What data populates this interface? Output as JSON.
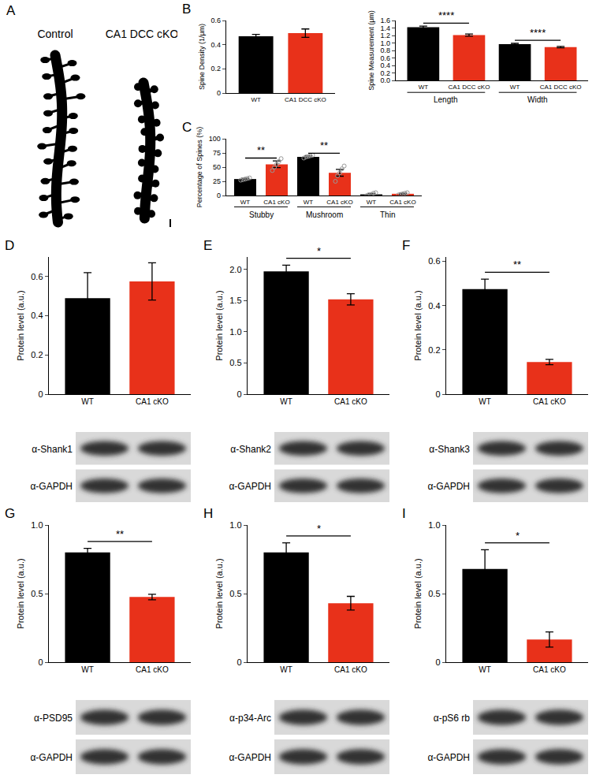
{
  "panel_a": {
    "panel": "A",
    "labels": [
      "Control",
      "CA1 DCC cKO"
    ]
  },
  "chart_data": [
    {
      "type": "bar",
      "panel": "B",
      "y_label": "Spine Density (1/μm)",
      "categories": [
        "WT",
        "CA1 DCC cKO"
      ],
      "values": [
        0.47,
        0.495
      ],
      "errors": [
        0.015,
        0.035
      ],
      "colors": [
        "#000000",
        "#e8311a"
      ],
      "ylim": [
        0,
        0.6
      ],
      "yticks": [
        0,
        0.2,
        0.4,
        0.6
      ],
      "grid": false
    },
    {
      "type": "bar",
      "panel": "B",
      "y_label": "Spine Measurement (μm)",
      "categories": [
        "WT",
        "CA1 DCC cKO",
        "WT",
        "CA1 DCC cKO"
      ],
      "groups": [
        "Length",
        "Width"
      ],
      "values": [
        1.42,
        1.21,
        0.97,
        0.89
      ],
      "errors": [
        0.03,
        0.03,
        0.02,
        0.02
      ],
      "colors": [
        "#000000",
        "#e8311a",
        "#000000",
        "#e8311a"
      ],
      "ylim": [
        0,
        1.6
      ],
      "yticks": [
        {
          "value": 0,
          "label": "0.0"
        },
        0.2,
        0.4,
        0.6,
        0.8,
        {
          "value": 1,
          "label": "1.0"
        },
        1.2,
        1.4,
        1.6
      ],
      "significance": [
        {
          "pair": [
            0,
            1
          ],
          "label": "****"
        },
        {
          "pair": [
            2,
            3
          ],
          "label": "****"
        }
      ],
      "grid": false
    },
    {
      "type": "bar",
      "panel": "C",
      "y_label": "Percentage of Spines (%)",
      "categories": [
        "WT",
        "CA1 cKO",
        "WT",
        "CA1 cKO",
        "WT",
        "CA1 cKO"
      ],
      "groups": [
        "Stubby",
        "Mushroom",
        "Thin"
      ],
      "values": [
        29,
        55,
        68,
        40,
        2,
        3
      ],
      "errors": [
        1.5,
        6,
        1.5,
        6,
        1.5,
        1
      ],
      "points": [
        [
          27,
          28,
          29,
          30,
          31
        ],
        [
          44,
          50,
          55,
          60,
          65
        ],
        [
          66,
          68,
          69,
          70,
          71
        ],
        [
          25,
          35,
          40,
          47,
          52
        ],
        [
          0,
          1,
          2,
          4,
          5
        ],
        [
          1,
          2,
          3,
          4,
          5
        ]
      ],
      "colors": [
        "#000000",
        "#e8311a",
        "#000000",
        "#e8311a",
        "#000000",
        "#e8311a"
      ],
      "ylim": [
        0,
        100
      ],
      "yticks": [
        0,
        25,
        50,
        75,
        100
      ],
      "significance": [
        {
          "pair": [
            0,
            1
          ],
          "label": "**"
        },
        {
          "pair": [
            2,
            3
          ],
          "label": "**"
        }
      ],
      "grid": false
    },
    {
      "type": "bar",
      "panel": "D",
      "y_label": "Protein level (a.u.)",
      "categories": [
        "WT",
        "CA1 cKO"
      ],
      "values": [
        0.49,
        0.575
      ],
      "errors": [
        0.13,
        0.095
      ],
      "colors": [
        "#000000",
        "#e8311a"
      ],
      "ylim": [
        0,
        0.7
      ],
      "yticks": [
        0,
        0.2,
        0.4,
        0.6
      ],
      "blots": [
        "α-Shank1",
        "α-GAPDH"
      ],
      "grid": false
    },
    {
      "type": "bar",
      "panel": "E",
      "y_label": "Protein level (a.u.)",
      "categories": [
        "WT",
        "CA1 cKO"
      ],
      "values": [
        1.97,
        1.52
      ],
      "errors": [
        0.1,
        0.09
      ],
      "colors": [
        "#000000",
        "#e8311a"
      ],
      "ylim": [
        0,
        2.2
      ],
      "yticks": [
        0,
        0.5,
        {
          "value": 1,
          "label": "1.0"
        },
        1.5,
        {
          "value": 2,
          "label": "2.0"
        }
      ],
      "significance": [
        {
          "pair": [
            0,
            1
          ],
          "label": "*"
        }
      ],
      "blots": [
        "α-Shank2",
        "α-GAPDH"
      ],
      "grid": false
    },
    {
      "type": "bar",
      "panel": "F",
      "y_label": "Protein level (a.u.)",
      "categories": [
        "WT",
        "CA1 cKO"
      ],
      "values": [
        0.475,
        0.145
      ],
      "errors": [
        0.045,
        0.012
      ],
      "colors": [
        "#000000",
        "#e8311a"
      ],
      "ylim": [
        0,
        0.62
      ],
      "yticks": [
        0,
        0.2,
        0.4,
        0.6
      ],
      "significance": [
        {
          "pair": [
            0,
            1
          ],
          "label": "**"
        }
      ],
      "blots": [
        "α-Shank3",
        "α-GAPDH"
      ],
      "grid": false
    },
    {
      "type": "bar",
      "panel": "G",
      "y_label": "Protein level (a.u.)",
      "categories": [
        "WT",
        "CA1 cKO"
      ],
      "values": [
        0.8,
        0.475
      ],
      "errors": [
        0.03,
        0.02
      ],
      "colors": [
        "#000000",
        "#e8311a"
      ],
      "ylim": [
        0,
        1
      ],
      "yticks": [
        0,
        0.5,
        {
          "value": 1,
          "label": "1.0"
        }
      ],
      "significance": [
        {
          "pair": [
            0,
            1
          ],
          "label": "**"
        }
      ],
      "blots": [
        "α-PSD95",
        "α-GAPDH"
      ],
      "grid": false
    },
    {
      "type": "bar",
      "panel": "H",
      "y_label": "Protein level (a.u.)",
      "categories": [
        "WT",
        "CA1 cKO"
      ],
      "values": [
        0.8,
        0.43
      ],
      "errors": [
        0.07,
        0.05
      ],
      "colors": [
        "#000000",
        "#e8311a"
      ],
      "ylim": [
        0,
        1
      ],
      "yticks": [
        0,
        0.5,
        {
          "value": 1,
          "label": "1.0"
        }
      ],
      "significance": [
        {
          "pair": [
            0,
            1
          ],
          "label": "*"
        }
      ],
      "blots": [
        "α-p34-Arc",
        "α-GAPDH"
      ],
      "grid": false
    },
    {
      "type": "bar",
      "panel": "I",
      "y_label": "Protein level (a.u.)",
      "categories": [
        "WT",
        "CA1 cKO"
      ],
      "values": [
        0.68,
        0.165
      ],
      "errors": [
        0.14,
        0.055
      ],
      "colors": [
        "#000000",
        "#e8311a"
      ],
      "ylim": [
        0,
        1
      ],
      "yticks": [
        0,
        0.5,
        {
          "value": 1,
          "label": "1.0"
        }
      ],
      "significance": [
        {
          "pair": [
            0,
            1
          ],
          "label": "*"
        }
      ],
      "blots": [
        "α-pS6 rb",
        "α-GAPDH"
      ],
      "grid": false
    }
  ]
}
